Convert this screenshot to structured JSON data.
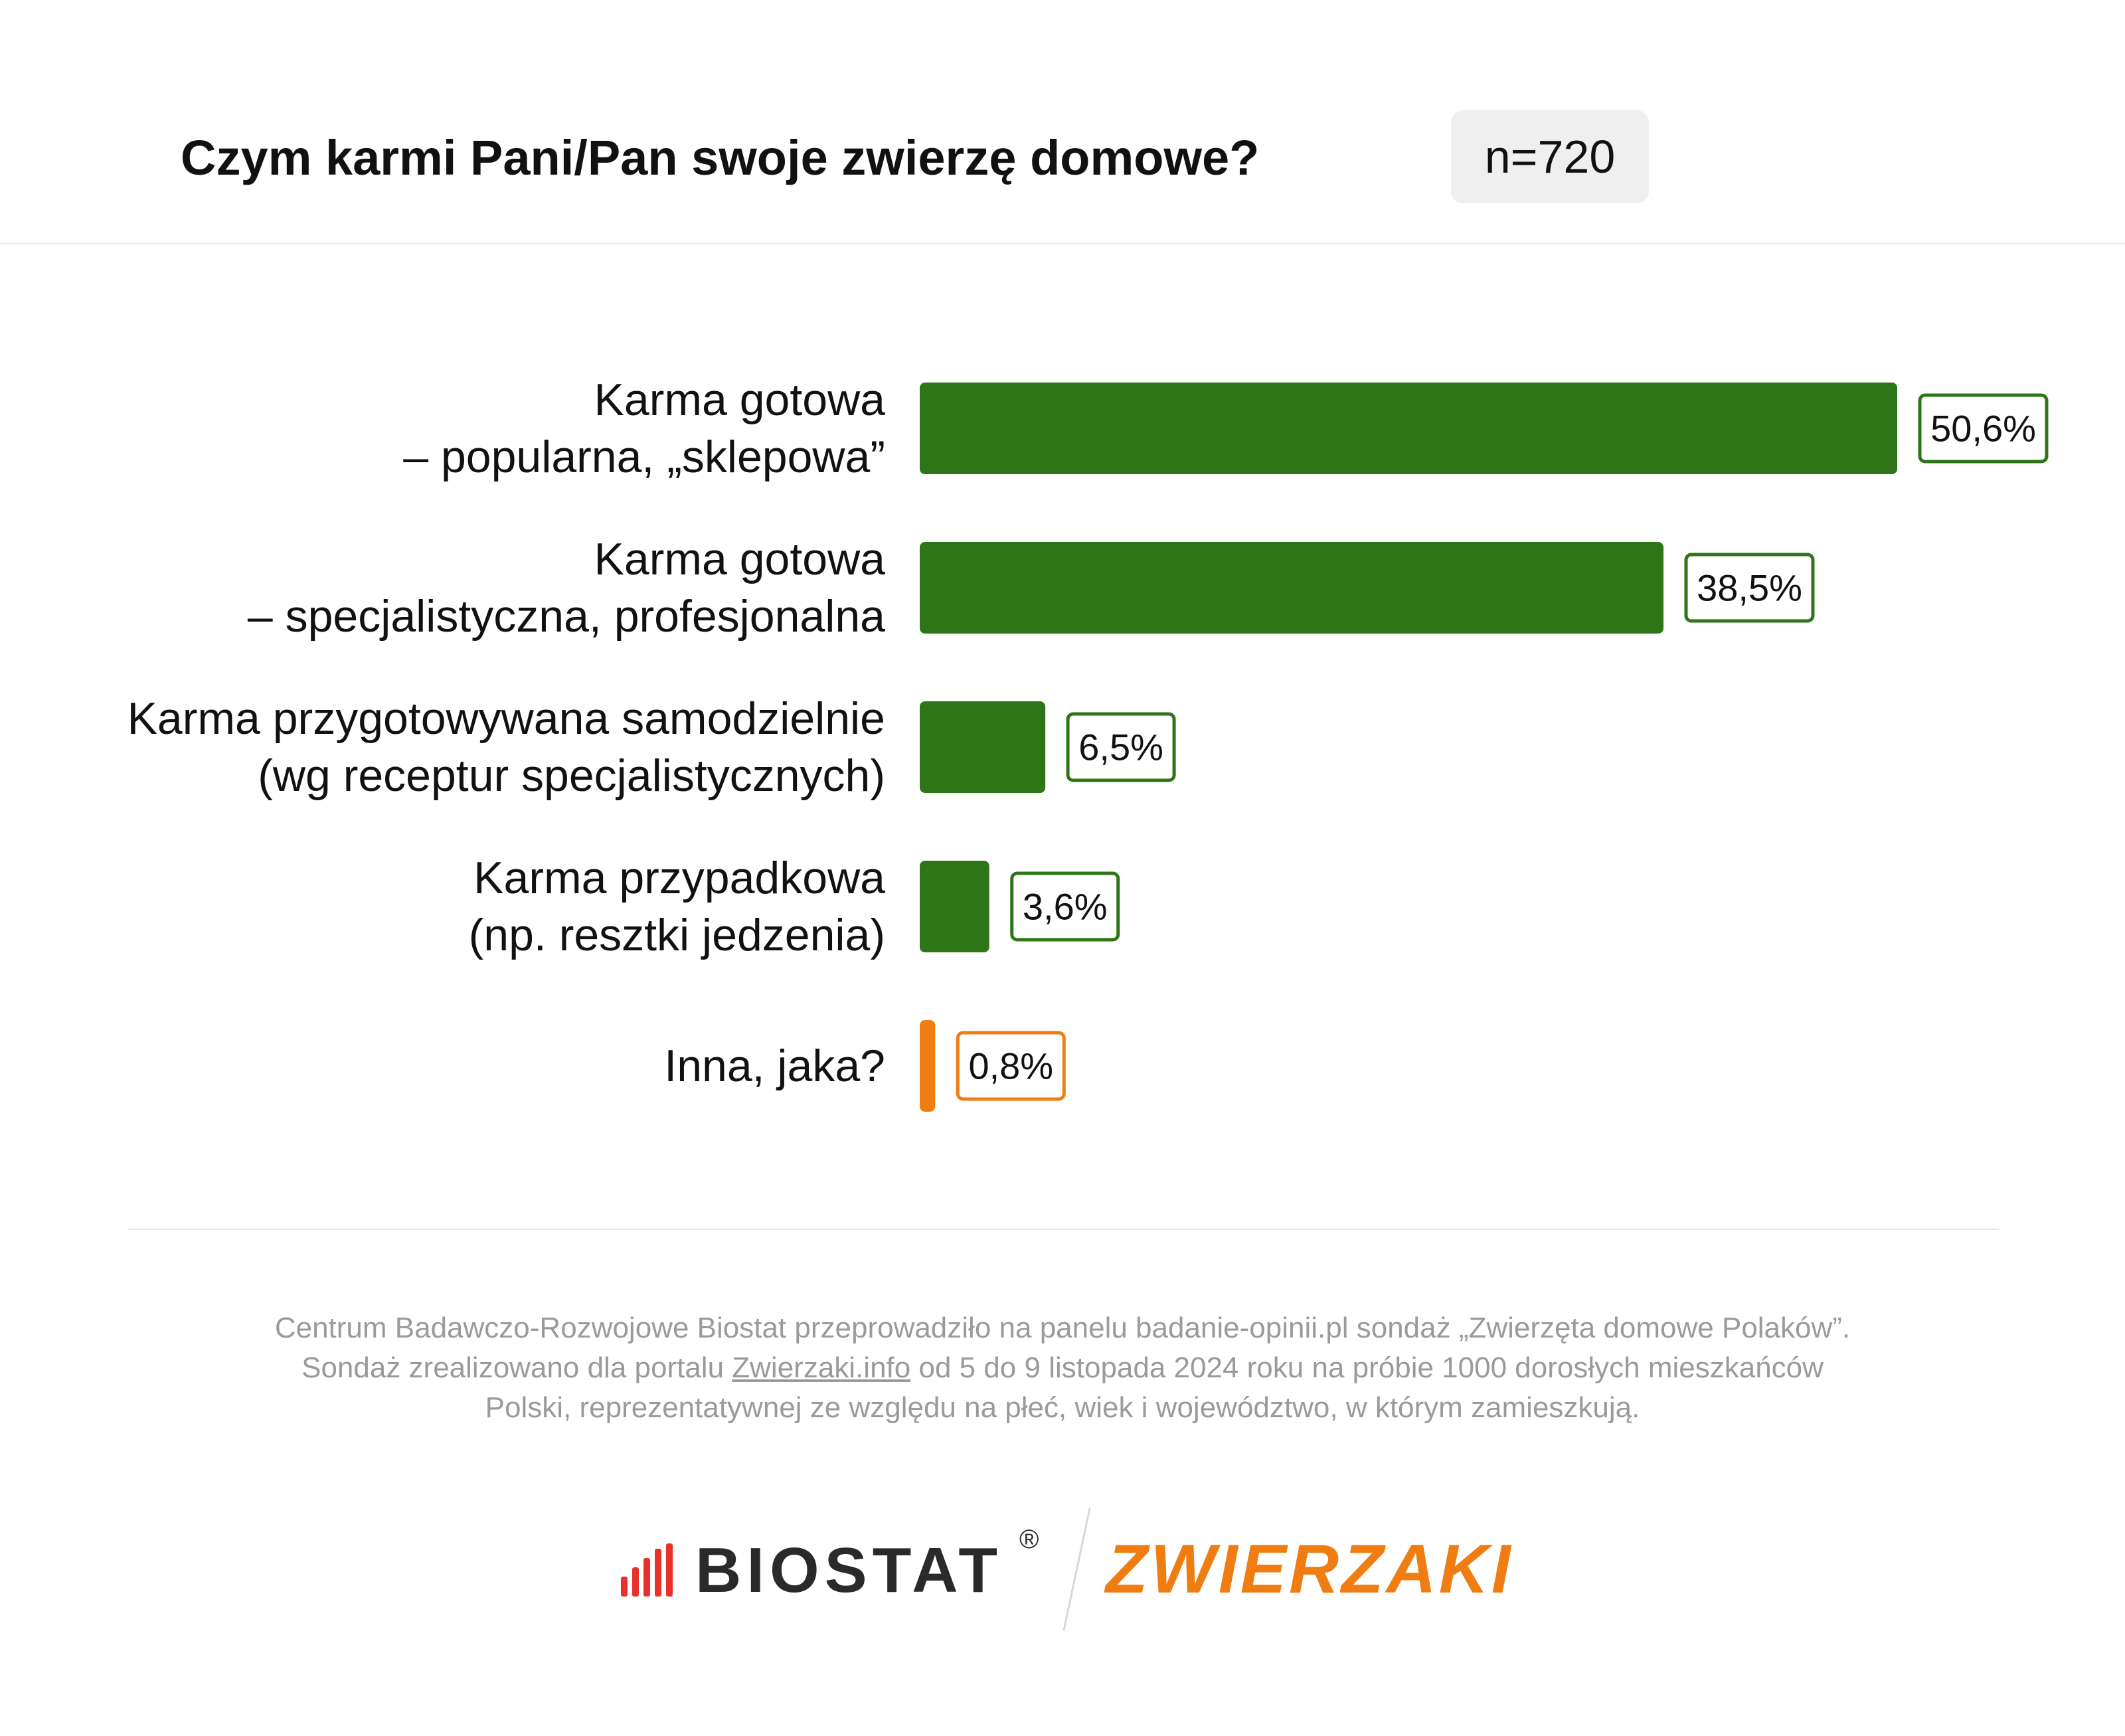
{
  "header": {
    "title": "Czym karmi Pani/Pan swoje zwierzę domowe?",
    "sample": "n=720"
  },
  "chart_data": {
    "type": "bar",
    "orientation": "horizontal",
    "categories": [
      [
        "Karma gotowa",
        "– popularna, „sklepowa”"
      ],
      [
        "Karma gotowa",
        "– specjalistyczna, profesjonalna"
      ],
      [
        "Karma przygotowywana samodzielnie",
        "(wg receptur specjalistycznych)"
      ],
      [
        "Karma przypadkowa",
        "(np. resztki jedzenia)"
      ],
      [
        "Inna, jaka?"
      ]
    ],
    "values": [
      50.6,
      38.5,
      6.5,
      3.6,
      0.8
    ],
    "value_labels": [
      "50,6%",
      "38,5%",
      "6,5%",
      "3,6%",
      "0,8%"
    ],
    "bar_colors": [
      "#2d7517",
      "#2d7517",
      "#2d7517",
      "#2d7517",
      "#f07d12"
    ],
    "xlim": [
      0,
      50.6
    ],
    "grid": false,
    "legend": "none"
  },
  "footnote": {
    "line1": "Centrum Badawczo-Rozwojowe Biostat przeprowadziło na panelu badanie-opinii.pl sondaż „Zwierzęta domowe Polaków”.",
    "line2_before": "Sondaż zrealizowano dla portalu ",
    "line2_link": "Zwierzaki.info",
    "line2_after": " od 5 do 9 listopada 2024 roku na próbie 1000 dorosłych mieszkańców",
    "line3": "Polski, reprezentatywnej ze względu na płeć, wiek i województwo, w którym zamieszkują."
  },
  "logos": {
    "biostat": "BIOSTAT",
    "biostat_reg": "®",
    "zwierzaki": "ZWIERZAKI"
  }
}
